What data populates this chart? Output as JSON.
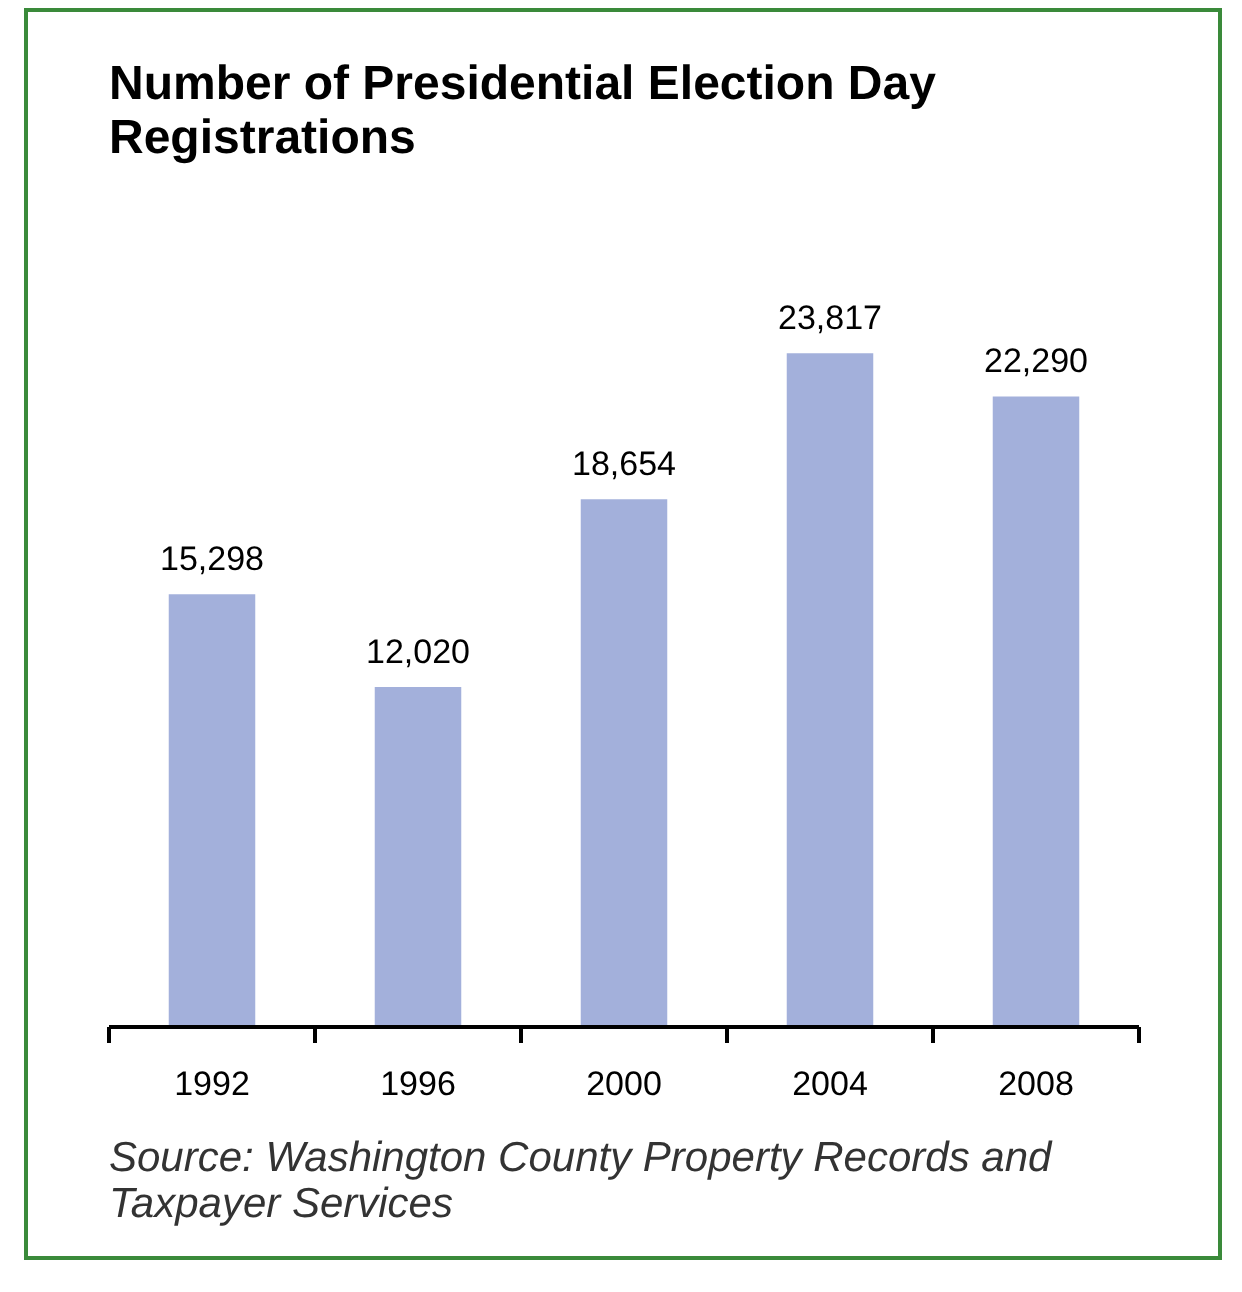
{
  "chart_data": {
    "type": "bar",
    "title": "Number of Presidential Election Day Registrations",
    "categories": [
      "1992",
      "1996",
      "2000",
      "2004",
      "2008"
    ],
    "values": [
      15298,
      12020,
      18654,
      23817,
      22290
    ],
    "color": "#a3b0db",
    "value_labels": [
      "15,298",
      "12,020",
      "18,654",
      "23,817",
      "22,290"
    ],
    "grid": false,
    "annotations": [
      "Source: Washington County Property Records and Taxpayer Services"
    ]
  }
}
